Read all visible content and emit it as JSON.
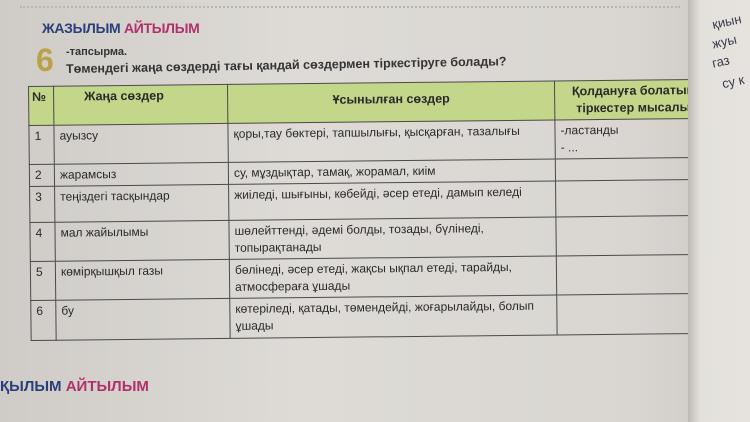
{
  "header": {
    "part1": "ЖАЗЫЛЫМ",
    "part2": "АЙТЫЛЫМ"
  },
  "task": {
    "number": "6",
    "label": "-тапсырма.",
    "question": "Төмендегі жаңа сөздерді тағы қандай сөздермен тіркестіруге болады?"
  },
  "table": {
    "headers": [
      "№",
      "Жаңа сөздер",
      "Ұсынылған сөздер",
      "Қолдануға болатын тіркестер мысалы"
    ],
    "rows": [
      {
        "num": "1",
        "word": "ауызсу",
        "suggested": "қоры,тау бөктері, тапшылығы, қысқарған, тазалығы",
        "examples": "-ластанды\n- ..."
      },
      {
        "num": "2",
        "word": "жарамсыз",
        "suggested": "су, мұздықтар, тамақ, жорамал, киім",
        "examples": ""
      },
      {
        "num": "3",
        "word": "теңіздегі тасқындар",
        "suggested": "жиіледі, шығыны, көбейді, әсер етеді, дамып келеді",
        "examples": ""
      },
      {
        "num": "4",
        "word": "мал жайылымы",
        "suggested": "шөлейттенді, әдемі болды, тозады, бүлінеді, топырақтанады",
        "examples": ""
      },
      {
        "num": "5",
        "word": "көмірқышқыл газы",
        "suggested": "бөлінеді, әсер етеді, жақсы ықпал етеді, тарайды, атмосфераға ұшады",
        "examples": ""
      },
      {
        "num": "6",
        "word": "бу",
        "suggested": "көтеріледі, қатады, төмендейді, жоғарылайды, болып ұшады",
        "examples": ""
      }
    ]
  },
  "right_page": [
    "қиын",
    "жуы",
    "газ",
    "су к"
  ],
  "footer": {
    "part1": "ҚЫЛЫМ",
    "part2": "АЙТЫЛЫМ"
  },
  "colors": {
    "header_blue": "#2a3f7a",
    "header_pink": "#b0306a",
    "table_header_green": "#c3d68a",
    "task_number": "#b9a24a"
  }
}
